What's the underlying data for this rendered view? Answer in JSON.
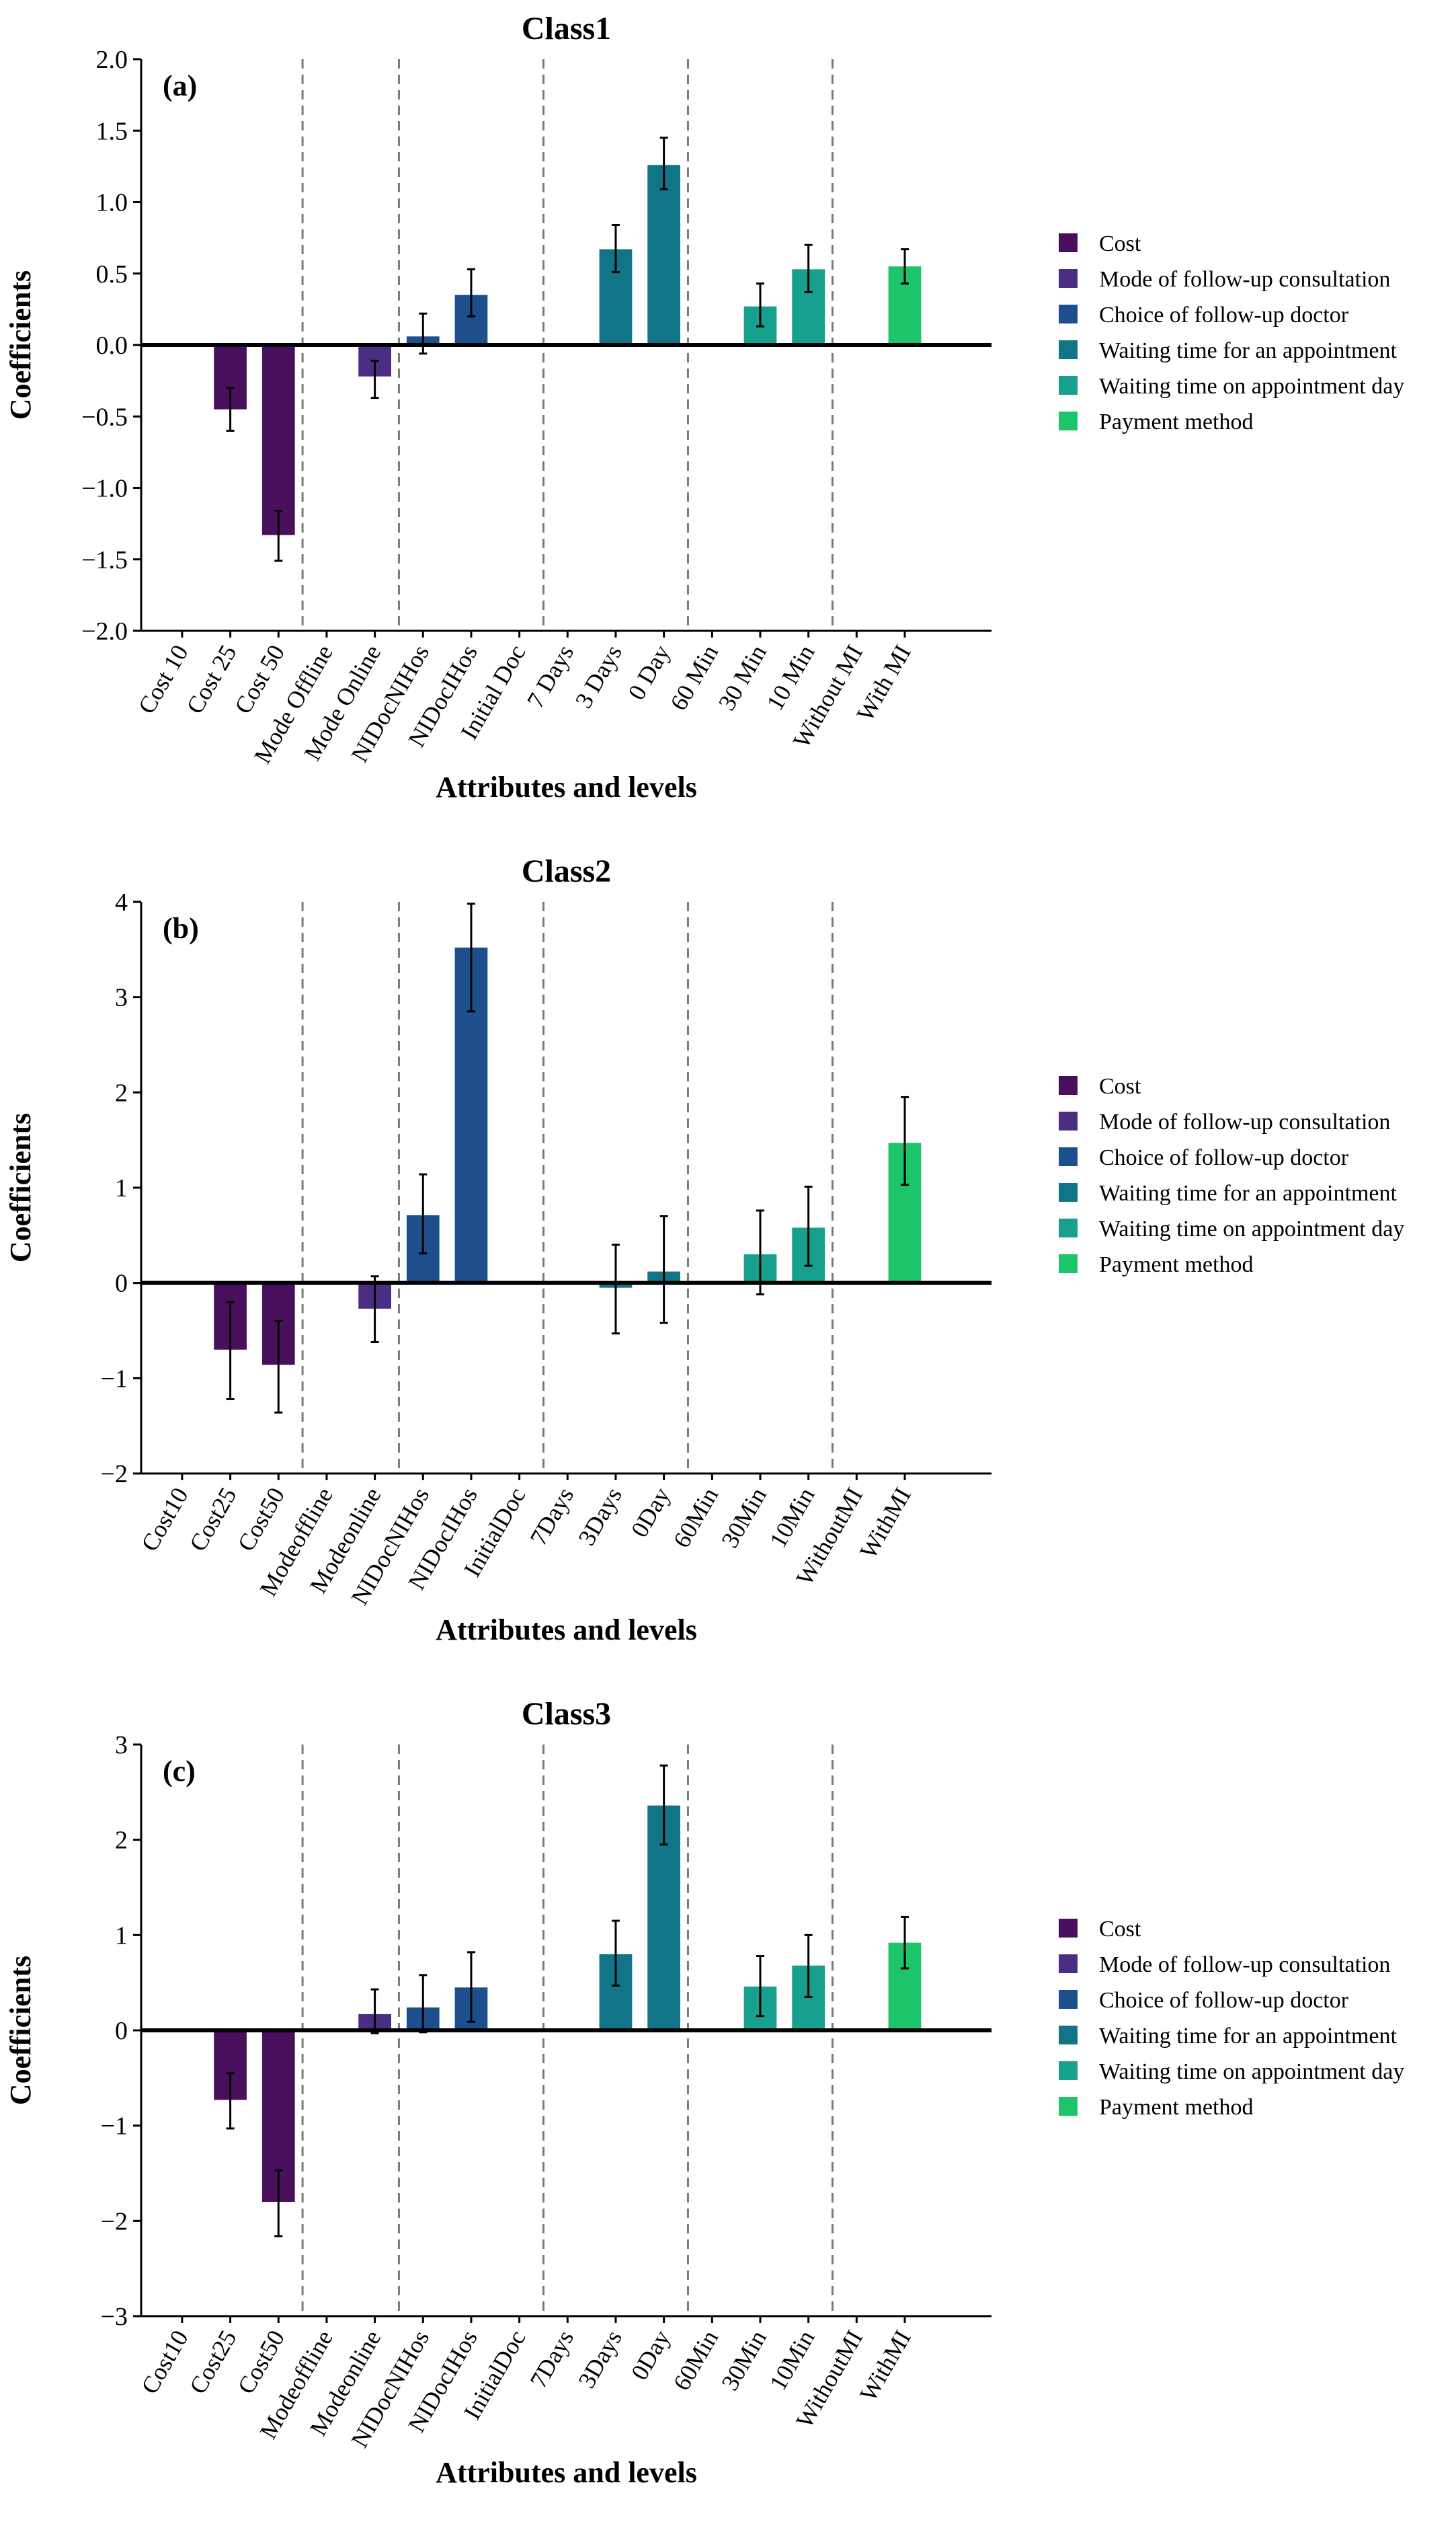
{
  "legend": {
    "entries": [
      {
        "name": "Cost",
        "color": "#4a0f5c"
      },
      {
        "name": "Mode of follow-up consultation",
        "color": "#4b2e83"
      },
      {
        "name": "Choice of follow-up doctor",
        "color": "#1d4f8c"
      },
      {
        "name": "Waiting time for an appointment",
        "color": "#127487"
      },
      {
        "name": "Waiting time on appointment day",
        "color": "#17a08d"
      },
      {
        "name": "Payment method",
        "color": "#1cc46a"
      }
    ]
  },
  "chart_data": [
    {
      "type": "bar",
      "title": "Class1",
      "panel_label": "(a)",
      "xlabel": "Attributes and levels",
      "ylabel": "Coefficients",
      "ylim": [
        -2.0,
        2.0
      ],
      "yticks": [
        "2.0",
        "1.5",
        "1.0",
        "0.5",
        "0.0",
        "−0.5",
        "−1.0",
        "−1.5",
        "−2.0"
      ],
      "ytick_values": [
        2.0,
        1.5,
        1.0,
        0.5,
        0.0,
        -0.5,
        -1.0,
        -1.5,
        -2.0
      ],
      "categories": [
        "Cost 10",
        "Cost 25",
        "Cost 50",
        "Mode Offline",
        "Mode Online",
        "NIDocNIHos",
        "NIDocIHos",
        "Initial Doc",
        "7 Days",
        "3 Days",
        "0 Day",
        "60 Min",
        "30 Min",
        "10 Min",
        "Without MI",
        "With MI"
      ],
      "groups": [
        0,
        0,
        0,
        1,
        1,
        2,
        2,
        2,
        3,
        3,
        3,
        4,
        4,
        4,
        5,
        5
      ],
      "values": [
        null,
        -0.45,
        -1.33,
        null,
        -0.22,
        0.06,
        0.35,
        null,
        null,
        0.67,
        1.26,
        null,
        0.27,
        0.53,
        null,
        0.55
      ],
      "err_low": [
        null,
        -0.6,
        -1.51,
        null,
        -0.37,
        -0.06,
        0.2,
        null,
        null,
        0.51,
        1.09,
        null,
        0.13,
        0.37,
        null,
        0.43
      ],
      "err_high": [
        null,
        -0.3,
        -1.16,
        null,
        -0.11,
        0.22,
        0.53,
        null,
        null,
        0.84,
        1.45,
        null,
        0.43,
        0.7,
        null,
        0.67
      ],
      "legend_position": "right"
    },
    {
      "type": "bar",
      "title": "Class2",
      "panel_label": "(b)",
      "xlabel": "Attributes and levels",
      "ylabel": "Coefficients",
      "ylim": [
        -2,
        4
      ],
      "yticks": [
        "4",
        "3",
        "2",
        "1",
        "0",
        "−1",
        "−2"
      ],
      "ytick_values": [
        4,
        3,
        2,
        1,
        0,
        -1,
        -2
      ],
      "categories": [
        "Cost10",
        "Cost25",
        "Cost50",
        "Modeoffline",
        "Modeonline",
        "NIDocNIHos",
        "NIDocIHos",
        "InitialDoc",
        "7Days",
        "3Days",
        "0Day",
        "60Min",
        "30Min",
        "10Min",
        "WithoutMI",
        "WithMI"
      ],
      "groups": [
        0,
        0,
        0,
        1,
        1,
        2,
        2,
        2,
        3,
        3,
        3,
        4,
        4,
        4,
        5,
        5
      ],
      "values": [
        null,
        -0.7,
        -0.86,
        null,
        -0.27,
        0.71,
        3.52,
        null,
        null,
        -0.05,
        0.12,
        null,
        0.3,
        0.58,
        null,
        1.47
      ],
      "err_low": [
        null,
        -1.22,
        -1.36,
        null,
        -0.62,
        0.31,
        2.85,
        null,
        null,
        -0.53,
        -0.42,
        null,
        -0.12,
        0.18,
        null,
        1.03
      ],
      "err_high": [
        null,
        -0.2,
        -0.4,
        null,
        0.07,
        1.14,
        3.98,
        null,
        null,
        0.4,
        0.7,
        null,
        0.76,
        1.01,
        null,
        1.95
      ],
      "legend_position": "right"
    },
    {
      "type": "bar",
      "title": "Class3",
      "panel_label": "(c)",
      "xlabel": "Attributes and levels",
      "ylabel": "Coefficients",
      "ylim": [
        -3,
        3
      ],
      "yticks": [
        "3",
        "2",
        "1",
        "0",
        "−1",
        "−2",
        "−3"
      ],
      "ytick_values": [
        3,
        2,
        1,
        0,
        -1,
        -2,
        -3
      ],
      "categories": [
        "Cost10",
        "Cost25",
        "Cost50",
        "Modeoffline",
        "Modeonline",
        "NIDocNIHos",
        "NIDocIHos",
        "InitialDoc",
        "7Days",
        "3Days",
        "0Day",
        "60Min",
        "30Min",
        "10Min",
        "WithoutMI",
        "WithMI"
      ],
      "groups": [
        0,
        0,
        0,
        1,
        1,
        2,
        2,
        2,
        3,
        3,
        3,
        4,
        4,
        4,
        5,
        5
      ],
      "values": [
        null,
        -0.73,
        -1.8,
        null,
        0.17,
        0.24,
        0.45,
        null,
        null,
        0.8,
        2.36,
        null,
        0.46,
        0.68,
        null,
        0.92
      ],
      "err_low": [
        null,
        -1.03,
        -2.16,
        null,
        -0.03,
        -0.02,
        0.09,
        null,
        null,
        0.47,
        1.95,
        null,
        0.15,
        0.35,
        null,
        0.65
      ],
      "err_high": [
        null,
        -0.45,
        -1.47,
        null,
        0.43,
        0.58,
        0.82,
        null,
        null,
        1.15,
        2.78,
        null,
        0.78,
        1.0,
        null,
        1.19
      ],
      "legend_position": "right"
    }
  ]
}
